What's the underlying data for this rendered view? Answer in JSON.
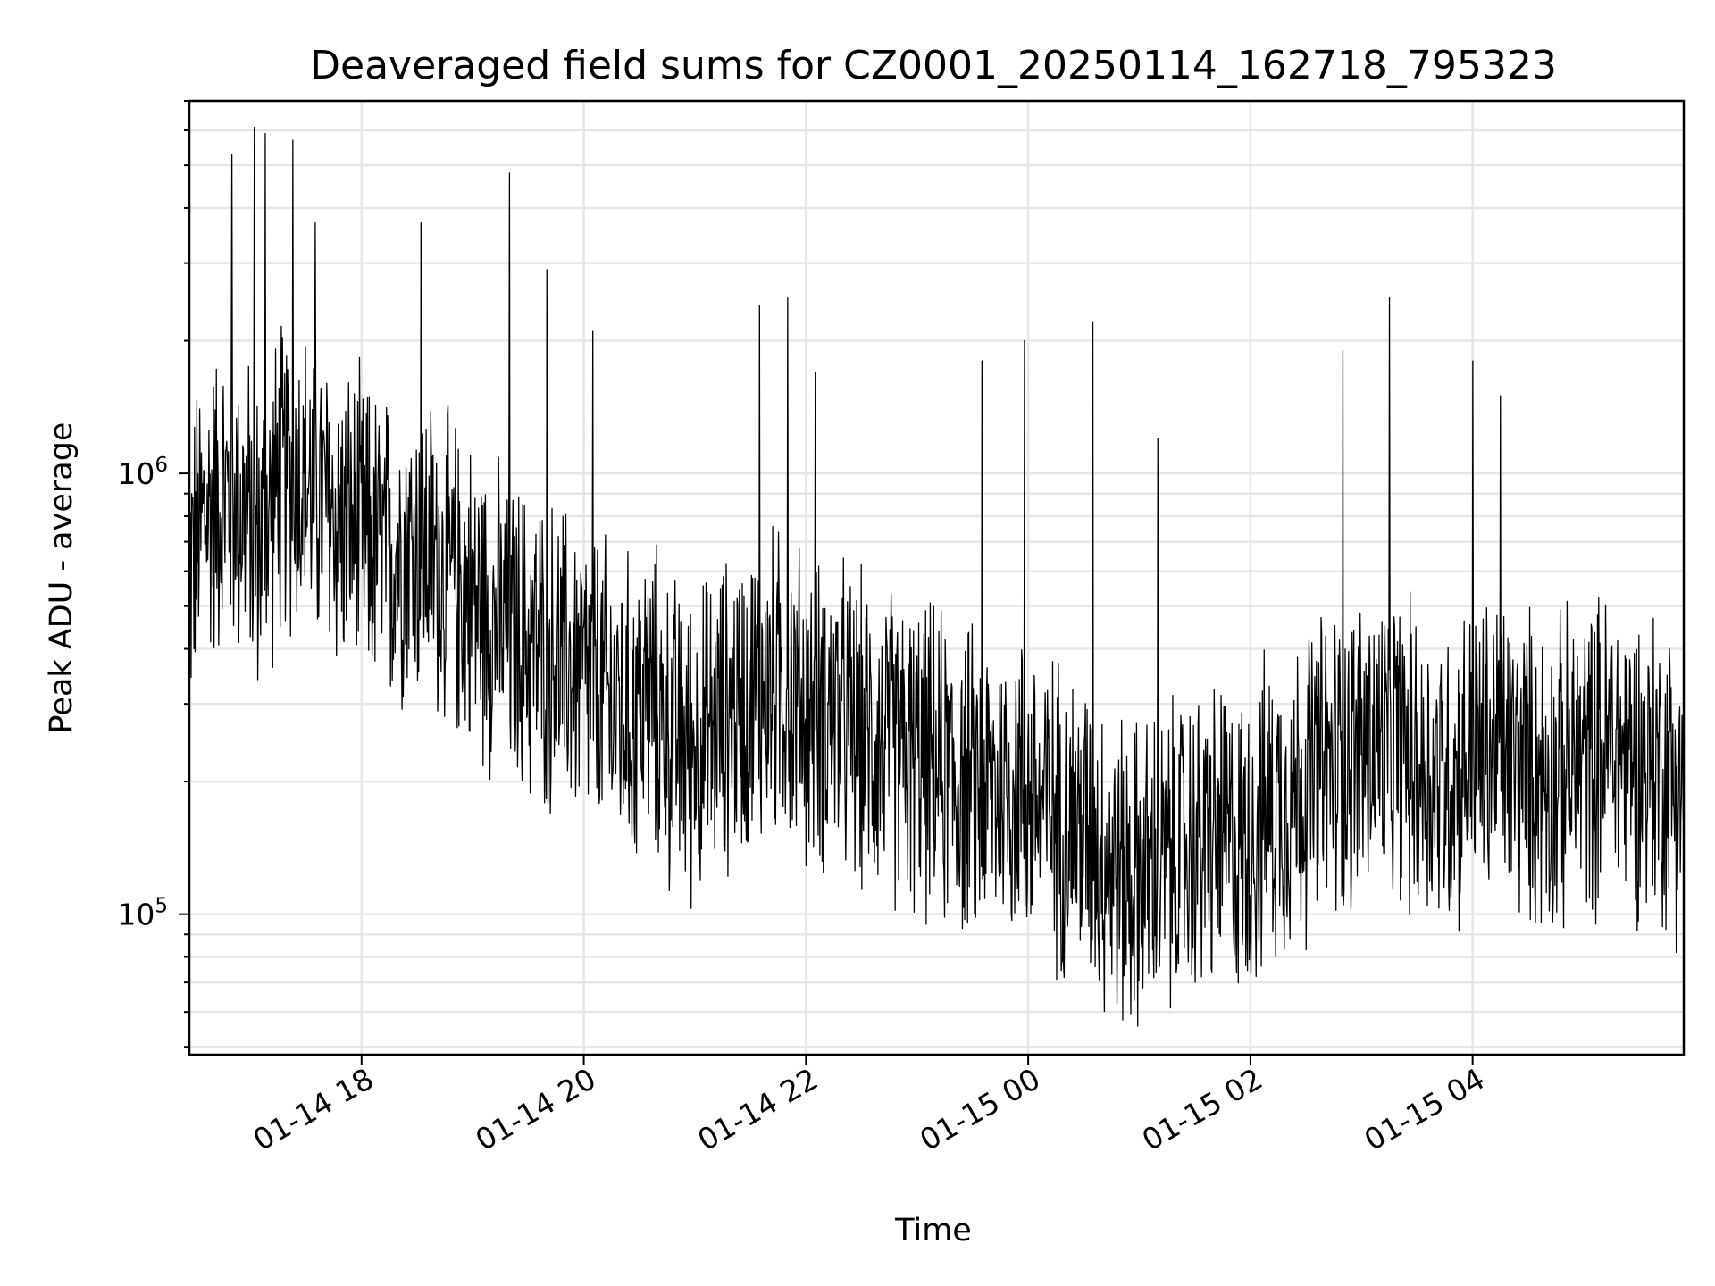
{
  "chart_data": {
    "type": "line",
    "title": "Deaveraged field sums for CZ0001_20250114_162718_795323",
    "xlabel": "Time",
    "ylabel": "Peak ADU - average",
    "y_scale": "log",
    "xlim": [
      "2025-01-14 16:27",
      "2025-01-15 05:54"
    ],
    "ylim": [
      48000,
      7000000
    ],
    "x_ticks": [
      {
        "value": "2025-01-14 18:00",
        "label": "01-14 18"
      },
      {
        "value": "2025-01-14 20:00",
        "label": "01-14 20"
      },
      {
        "value": "2025-01-14 22:00",
        "label": "01-14 22"
      },
      {
        "value": "2025-01-15 00:00",
        "label": "01-15 00"
      },
      {
        "value": "2025-01-15 02:00",
        "label": "01-15 02"
      },
      {
        "value": "2025-01-15 04:00",
        "label": "01-15 04"
      }
    ],
    "y_ticks": [
      {
        "value": 100000,
        "base": "10",
        "exp": "5"
      },
      {
        "value": 1000000,
        "base": "10",
        "exp": "6"
      }
    ],
    "grid": true,
    "legend": "none",
    "series": [
      {
        "color": "#000000",
        "x": [
          "2025-01-14 16:27",
          "2025-01-14 16:35",
          "2025-01-14 16:45",
          "2025-01-14 16:55",
          "2025-01-14 17:05",
          "2025-01-14 17:15",
          "2025-01-14 17:25",
          "2025-01-14 17:35",
          "2025-01-14 17:45",
          "2025-01-14 17:55",
          "2025-01-14 18:05",
          "2025-01-14 18:15",
          "2025-01-14 18:25",
          "2025-01-14 18:35",
          "2025-01-14 18:45",
          "2025-01-14 18:55",
          "2025-01-14 19:05",
          "2025-01-14 19:15",
          "2025-01-14 19:25",
          "2025-01-14 19:35",
          "2025-01-14 19:45",
          "2025-01-14 19:55",
          "2025-01-14 20:05",
          "2025-01-14 20:15",
          "2025-01-14 20:25",
          "2025-01-14 20:35",
          "2025-01-14 20:45",
          "2025-01-14 20:55",
          "2025-01-14 21:05",
          "2025-01-14 21:15",
          "2025-01-14 21:25",
          "2025-01-14 21:35",
          "2025-01-14 21:45",
          "2025-01-14 21:55",
          "2025-01-14 22:05",
          "2025-01-14 22:15",
          "2025-01-14 22:25",
          "2025-01-14 22:35",
          "2025-01-14 22:45",
          "2025-01-14 22:55",
          "2025-01-14 23:05",
          "2025-01-14 23:15",
          "2025-01-14 23:25",
          "2025-01-14 23:35",
          "2025-01-14 23:45",
          "2025-01-14 23:55",
          "2025-01-15 00:05",
          "2025-01-15 00:15",
          "2025-01-15 00:25",
          "2025-01-15 00:35",
          "2025-01-15 00:45",
          "2025-01-15 00:55",
          "2025-01-15 01:05",
          "2025-01-15 01:15",
          "2025-01-15 01:25",
          "2025-01-15 01:35",
          "2025-01-15 01:45",
          "2025-01-15 01:55",
          "2025-01-15 02:05",
          "2025-01-15 02:15",
          "2025-01-15 02:25",
          "2025-01-15 02:35",
          "2025-01-15 02:45",
          "2025-01-15 02:55",
          "2025-01-15 03:05",
          "2025-01-15 03:15",
          "2025-01-15 03:25",
          "2025-01-15 03:35",
          "2025-01-15 03:45",
          "2025-01-15 03:55",
          "2025-01-15 04:05",
          "2025-01-15 04:15",
          "2025-01-15 04:25",
          "2025-01-15 04:35",
          "2025-01-15 04:45",
          "2025-01-15 04:55",
          "2025-01-15 05:05",
          "2025-01-15 05:15",
          "2025-01-15 05:25",
          "2025-01-15 05:35",
          "2025-01-15 05:45",
          "2025-01-15 05:54"
        ],
        "y": [
          600000,
          800000,
          900000,
          850000,
          700000,
          950000,
          1000000,
          900000,
          800000,
          750000,
          700000,
          650000,
          700000,
          680000,
          600000,
          550000,
          500000,
          450000,
          420000,
          400000,
          380000,
          360000,
          330000,
          300000,
          280000,
          320000,
          260000,
          240000,
          250000,
          280000,
          300000,
          320000,
          330000,
          300000,
          280000,
          290000,
          260000,
          250000,
          240000,
          230000,
          220000,
          210000,
          200000,
          190000,
          200000,
          195000,
          180000,
          170000,
          160000,
          150000,
          130000,
          120000,
          125000,
          130000,
          140000,
          145000,
          150000,
          140000,
          160000,
          180000,
          190000,
          210000,
          220000,
          230000,
          240000,
          250000,
          230000,
          210000,
          200000,
          220000,
          230000,
          240000,
          220000,
          210000,
          200000,
          220000,
          230000,
          240000,
          230000,
          220000,
          210000,
          200000
        ],
        "peaks": [
          {
            "x": "2025-01-14 16:50",
            "y": 5300000
          },
          {
            "x": "2025-01-14 17:02",
            "y": 6100000
          },
          {
            "x": "2025-01-14 17:08",
            "y": 5900000
          },
          {
            "x": "2025-01-14 17:23",
            "y": 5700000
          },
          {
            "x": "2025-01-14 17:35",
            "y": 3700000
          },
          {
            "x": "2025-01-14 18:32",
            "y": 3700000
          },
          {
            "x": "2025-01-14 19:20",
            "y": 2500000
          },
          {
            "x": "2025-01-14 19:20",
            "y": 4800000
          },
          {
            "x": "2025-01-14 19:40",
            "y": 2900000
          },
          {
            "x": "2025-01-14 20:05",
            "y": 2100000
          },
          {
            "x": "2025-01-14 21:35",
            "y": 2400000
          },
          {
            "x": "2025-01-14 21:50",
            "y": 2500000
          },
          {
            "x": "2025-01-14 22:05",
            "y": 1700000
          },
          {
            "x": "2025-01-14 23:35",
            "y": 1800000
          },
          {
            "x": "2025-01-14 23:58",
            "y": 2000000
          },
          {
            "x": "2025-01-15 00:35",
            "y": 2200000
          },
          {
            "x": "2025-01-15 01:10",
            "y": 1200000
          },
          {
            "x": "2025-01-15 02:50",
            "y": 1900000
          },
          {
            "x": "2025-01-15 03:15",
            "y": 2500000
          },
          {
            "x": "2025-01-15 04:00",
            "y": 1800000
          },
          {
            "x": "2025-01-15 04:15",
            "y": 1500000
          }
        ]
      }
    ]
  }
}
